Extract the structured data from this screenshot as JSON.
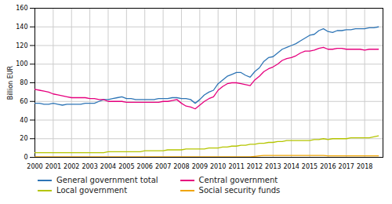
{
  "chart_data": {
    "type": "line",
    "ylabel": "Billion EUR",
    "x": [
      2000,
      2000.25,
      2000.5,
      2000.75,
      2001,
      2001.25,
      2001.5,
      2001.75,
      2002,
      2002.25,
      2002.5,
      2002.75,
      2003,
      2003.25,
      2003.5,
      2003.75,
      2004,
      2004.25,
      2004.5,
      2004.75,
      2005,
      2005.25,
      2005.5,
      2005.75,
      2006,
      2006.25,
      2006.5,
      2006.75,
      2007,
      2007.25,
      2007.5,
      2007.75,
      2008,
      2008.25,
      2008.5,
      2008.75,
      2009,
      2009.25,
      2009.5,
      2009.75,
      2010,
      2010.25,
      2010.5,
      2010.75,
      2011,
      2011.25,
      2011.5,
      2011.75,
      2012,
      2012.25,
      2012.5,
      2012.75,
      2013,
      2013.25,
      2013.5,
      2013.75,
      2014,
      2014.25,
      2014.5,
      2014.75,
      2015,
      2015.25,
      2015.5,
      2015.75,
      2016,
      2016.25,
      2016.5,
      2016.75,
      2017,
      2017.25,
      2017.5,
      2017.75,
      2018,
      2018.25,
      2018.5,
      2018.75
    ],
    "xlim": [
      2000,
      2019
    ],
    "xticks": [
      2000,
      2001,
      2002,
      2003,
      2004,
      2005,
      2006,
      2007,
      2008,
      2009,
      2010,
      2011,
      2012,
      2013,
      2014,
      2015,
      2016,
      2017,
      2018
    ],
    "ylim": [
      0,
      160
    ],
    "yticks": [
      0,
      20,
      40,
      60,
      80,
      100,
      120,
      140,
      160
    ],
    "grid": true,
    "legend": "bottom",
    "series": [
      {
        "name": "General government total",
        "color": "#2e75b6",
        "values": [
          58,
          58,
          57,
          57,
          58,
          57,
          56,
          57,
          57,
          57,
          57,
          58,
          58,
          58,
          60,
          62,
          62,
          63,
          64,
          65,
          63,
          63,
          62,
          62,
          62,
          62,
          62,
          63,
          63,
          63,
          64,
          64,
          63,
          63,
          62,
          58,
          62,
          67,
          70,
          72,
          79,
          83,
          87,
          89,
          91,
          91,
          88,
          86,
          92,
          96,
          103,
          107,
          108,
          112,
          116,
          118,
          120,
          122,
          125,
          128,
          131,
          132,
          136,
          138,
          135,
          134,
          136,
          136,
          137,
          137,
          138,
          138,
          138,
          139,
          139,
          140
        ]
      },
      {
        "name": "Central government",
        "color": "#e6007e",
        "values": [
          73,
          72,
          71,
          70,
          68,
          67,
          66,
          65,
          64,
          64,
          64,
          64,
          63,
          63,
          62,
          62,
          60,
          60,
          60,
          60,
          59,
          59,
          59,
          59,
          59,
          59,
          59,
          59,
          60,
          60,
          61,
          62,
          58,
          55,
          54,
          52,
          56,
          60,
          63,
          65,
          72,
          76,
          79,
          80,
          80,
          79,
          78,
          77,
          83,
          87,
          92,
          95,
          97,
          100,
          104,
          106,
          107,
          109,
          112,
          114,
          114,
          115,
          117,
          118,
          116,
          116,
          117,
          117,
          116,
          116,
          116,
          116,
          115,
          116,
          116,
          116
        ]
      },
      {
        "name": "Local government",
        "color": "#b5c500",
        "values": [
          5,
          5,
          5,
          5,
          5,
          5,
          5,
          5,
          5,
          5,
          5,
          5,
          5,
          5,
          5,
          5,
          6,
          6,
          6,
          6,
          6,
          6,
          6,
          6,
          7,
          7,
          7,
          7,
          7,
          8,
          8,
          8,
          8,
          9,
          9,
          9,
          9,
          9,
          10,
          10,
          10,
          11,
          11,
          12,
          12,
          13,
          13,
          14,
          14,
          15,
          15,
          16,
          16,
          17,
          17,
          18,
          18,
          18,
          18,
          18,
          18,
          19,
          19,
          20,
          19,
          20,
          20,
          20,
          20,
          21,
          21,
          21,
          21,
          21,
          22,
          23
        ]
      },
      {
        "name": "Social security funds",
        "color": "#f0a500",
        "values": [
          0.5,
          0.5,
          0.5,
          0.5,
          0.5,
          0.5,
          0.5,
          0.5,
          0.5,
          0.5,
          0.5,
          0.5,
          0.5,
          0.5,
          0.5,
          0.5,
          0.5,
          0.5,
          0.5,
          0.5,
          0.5,
          0.5,
          0.5,
          0.5,
          0.5,
          0.5,
          0.5,
          0.5,
          0.5,
          0.5,
          0.5,
          0.5,
          0.5,
          0.5,
          0.5,
          0.5,
          0.5,
          0.5,
          0.5,
          0.5,
          0.5,
          0.5,
          0.5,
          0.5,
          0.5,
          0.5,
          0.5,
          0.5,
          1.0,
          1.5,
          2.0,
          2.0,
          2.0,
          2.0,
          2.0,
          2.0,
          2.0,
          2.0,
          2.0,
          2.0,
          2.0,
          2.0,
          2.0,
          2.0,
          1.5,
          1.5,
          1.5,
          1.5,
          1.5,
          1.5,
          1.5,
          1.5,
          1.5,
          1.5,
          1.5,
          1.5
        ]
      }
    ]
  }
}
